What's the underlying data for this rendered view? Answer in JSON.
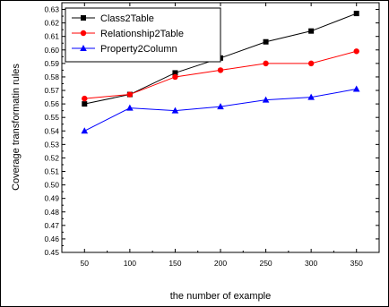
{
  "chart_data": {
    "type": "line",
    "title": "",
    "xlabel": "the number of example",
    "ylabel": "Coverage transformatin rules",
    "x": [
      50,
      100,
      150,
      200,
      250,
      300,
      350
    ],
    "xlim": [
      25,
      375
    ],
    "ylim": [
      0.45,
      0.635
    ],
    "x_ticks": [
      "50",
      "100",
      "150",
      "200",
      "250",
      "300",
      "350"
    ],
    "y_ticks": [
      "0.45",
      "0.46",
      "0.47",
      "0.48",
      "0.49",
      "0.50",
      "0.51",
      "0.52",
      "0.53",
      "0.54",
      "0.55",
      "0.56",
      "0.57",
      "0.58",
      "0.59",
      "0.60",
      "0.61",
      "0.62",
      "0.63"
    ],
    "grid": false,
    "legend_position": "top-left",
    "series": [
      {
        "name": "Class2Table",
        "color": "#000000",
        "marker": "square",
        "values": [
          0.56,
          0.567,
          0.583,
          0.594,
          0.606,
          0.614,
          0.627
        ]
      },
      {
        "name": "Relationship2Table",
        "color": "#ff0000",
        "marker": "circle",
        "values": [
          0.564,
          0.567,
          0.58,
          0.585,
          0.59,
          0.59,
          0.599
        ]
      },
      {
        "name": "Property2Column",
        "color": "#0000ff",
        "marker": "triangle",
        "values": [
          0.54,
          0.557,
          0.555,
          0.558,
          0.563,
          0.565,
          0.571
        ]
      }
    ]
  }
}
